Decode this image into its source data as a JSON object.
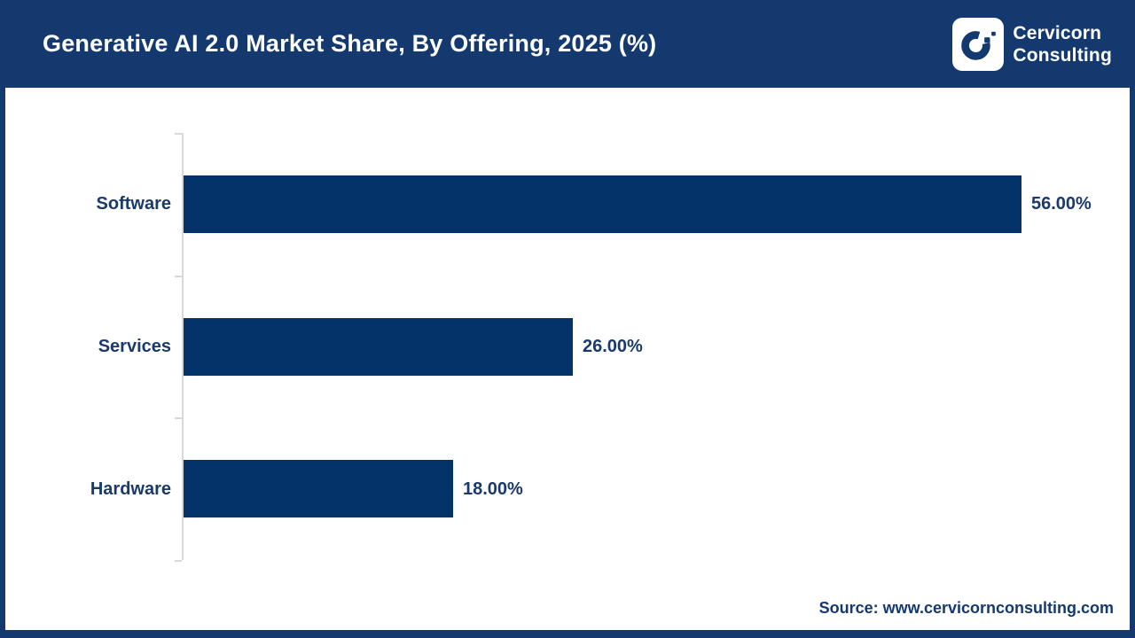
{
  "header": {
    "title": "Generative AI 2.0 Market Share, By Offering, 2025 (%)"
  },
  "brand": {
    "name": "Cervicorn Consulting",
    "line1": "Cervicorn",
    "line2": "Consulting"
  },
  "colors": {
    "header_navy": "#14396F",
    "bar_navy": "#04336A",
    "label_navy": "#1A3A6B",
    "axis_gray": "#D9D9D9",
    "background": "#FFFFFF"
  },
  "chart_data": {
    "type": "bar",
    "orientation": "horizontal",
    "title": "Generative AI 2.0 Market Share, By Offering, 2025 (%)",
    "categories": [
      "Software",
      "Services",
      "Hardware"
    ],
    "values": [
      56,
      26,
      18
    ],
    "value_labels": [
      "56.00%",
      "26.00%",
      "18.00%"
    ],
    "unit": "%",
    "xlim": [
      0,
      60
    ],
    "grid": false,
    "legend": false
  },
  "footer": {
    "source": "Source: www.cervicornconsulting.com"
  }
}
